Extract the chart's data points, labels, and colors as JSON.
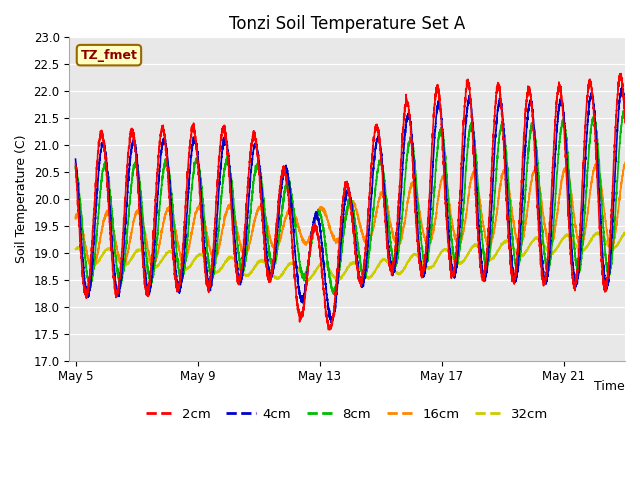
{
  "title": "Tonzi Soil Temperature Set A",
  "xlabel": "Time",
  "ylabel": "Soil Temperature (C)",
  "ylim": [
    17.0,
    23.0
  ],
  "yticks": [
    17.0,
    17.5,
    18.0,
    18.5,
    19.0,
    19.5,
    20.0,
    20.5,
    21.0,
    21.5,
    22.0,
    22.5,
    23.0
  ],
  "label_box_text": "TZ_fmet",
  "label_box_bg": "#ffffc0",
  "label_box_border": "#996600",
  "label_box_text_color": "#8B0000",
  "series": {
    "2cm": {
      "color": "#ff0000",
      "linewidth": 1.2
    },
    "4cm": {
      "color": "#0000cc",
      "linewidth": 1.2
    },
    "8cm": {
      "color": "#00bb00",
      "linewidth": 1.2
    },
    "16cm": {
      "color": "#ff8800",
      "linewidth": 1.2
    },
    "32cm": {
      "color": "#cccc00",
      "linewidth": 1.2
    }
  },
  "bg_color": "#e8e8e8",
  "fig_bg": "#ffffff"
}
